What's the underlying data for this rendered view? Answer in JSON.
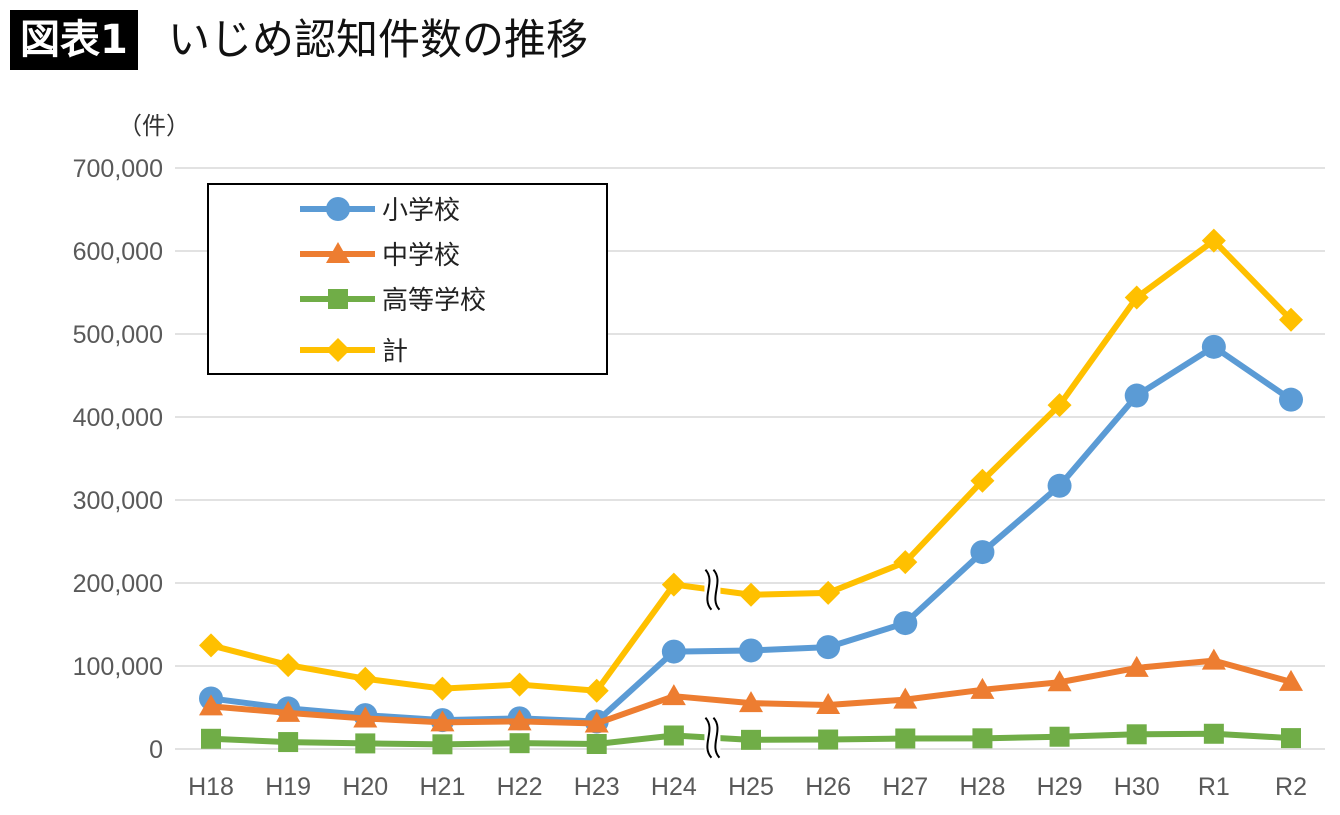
{
  "header": {
    "badge": "図表1",
    "title": "いじめ認知件数の推移"
  },
  "chart_data": {
    "type": "line",
    "title": "いじめ認知件数の推移",
    "ylabel": "（件）",
    "categories": [
      "H18",
      "H19",
      "H20",
      "H21",
      "H22",
      "H23",
      "H24",
      "H25",
      "H26",
      "H27",
      "H28",
      "H29",
      "H30",
      "R1",
      "R2"
    ],
    "ylim": [
      0,
      700000
    ],
    "yticks": [
      0,
      100000,
      200000,
      300000,
      400000,
      500000,
      600000,
      700000
    ],
    "ytick_labels": [
      "0",
      "100,000",
      "200,000",
      "300,000",
      "400,000",
      "500,000",
      "600,000",
      "700,000"
    ],
    "grid": true,
    "legend_placement": "top-left",
    "break_between": [
      "H24",
      "H25"
    ],
    "series": [
      {
        "name": "小学校",
        "color": "#5B9BD5",
        "marker": "circle",
        "values": [
          60897,
          48896,
          40807,
          34766,
          36909,
          33124,
          117384,
          118748,
          122734,
          151692,
          237256,
          317121,
          425844,
          484545,
          420897
        ]
      },
      {
        "name": "中学校",
        "color": "#ED7D31",
        "marker": "triangle",
        "values": [
          51310,
          43505,
          36795,
          32111,
          33323,
          30749,
          63634,
          55248,
          52971,
          59502,
          71309,
          80424,
          97704,
          106524,
          80877
        ]
      },
      {
        "name": "高等学校",
        "color": "#70AD47",
        "marker": "square",
        "values": [
          12307,
          8355,
          6737,
          5642,
          7018,
          6020,
          16274,
          11039,
          11404,
          12664,
          12874,
          14789,
          17709,
          18352,
          13126
        ]
      },
      {
        "name": "計",
        "color": "#FFC000",
        "marker": "diamond",
        "values": [
          124898,
          101097,
          84648,
          72778,
          77630,
          70231,
          198109,
          185803,
          188072,
          225132,
          323143,
          414378,
          543933,
          612496,
          517163
        ]
      }
    ]
  }
}
